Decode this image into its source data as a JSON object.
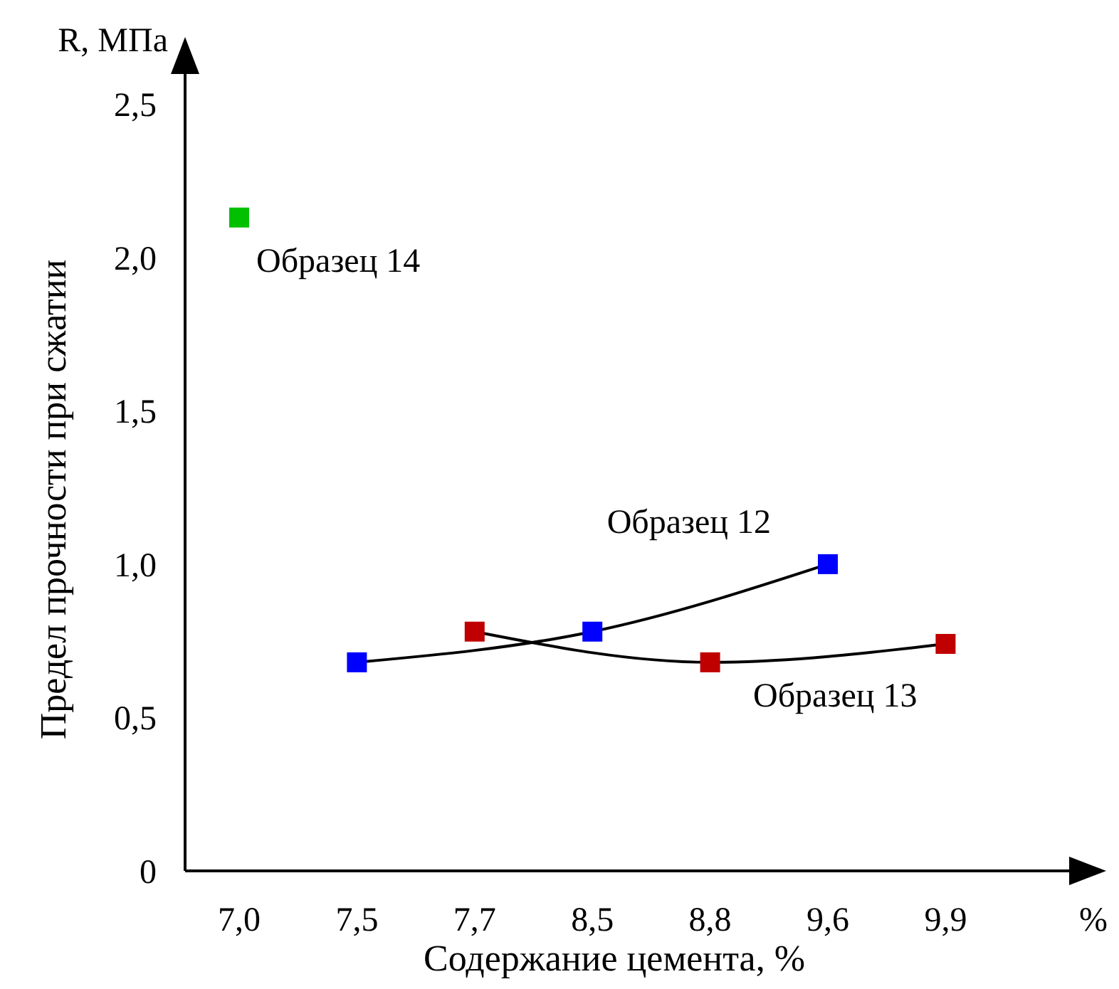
{
  "chart_data": {
    "type": "line",
    "ylabel": "Предел прочности при сжатии",
    "xlabel": "Содержание цемента, %",
    "annotations": [
      "R, МПа",
      "%"
    ],
    "categories": [
      "7,0",
      "7,5",
      "7,7",
      "8,5",
      "8,8",
      "9,6",
      "9,9"
    ],
    "ylim": [
      0,
      2.7
    ],
    "yticks": [
      0,
      {
        "value": 0.5,
        "label": "0,5"
      },
      {
        "value": 1,
        "label": "1,0"
      },
      {
        "value": 1.5,
        "label": "1,5"
      },
      {
        "value": 2,
        "label": "2,0"
      },
      {
        "value": 2.5,
        "label": "2,5"
      }
    ],
    "marker": "square",
    "series": [
      {
        "name": "Образец 12",
        "color": "#0000ff",
        "values": [
          null,
          0.68,
          null,
          0.78,
          null,
          1.0,
          null
        ]
      },
      {
        "name": "Образец 13",
        "color": "#c00000",
        "values": [
          null,
          null,
          0.78,
          null,
          0.68,
          null,
          0.74
        ]
      },
      {
        "name": "Образец 14",
        "type": "scatter",
        "color": "#00c000",
        "values": [
          2.13,
          null,
          null,
          null,
          null,
          null,
          null
        ]
      }
    ]
  }
}
